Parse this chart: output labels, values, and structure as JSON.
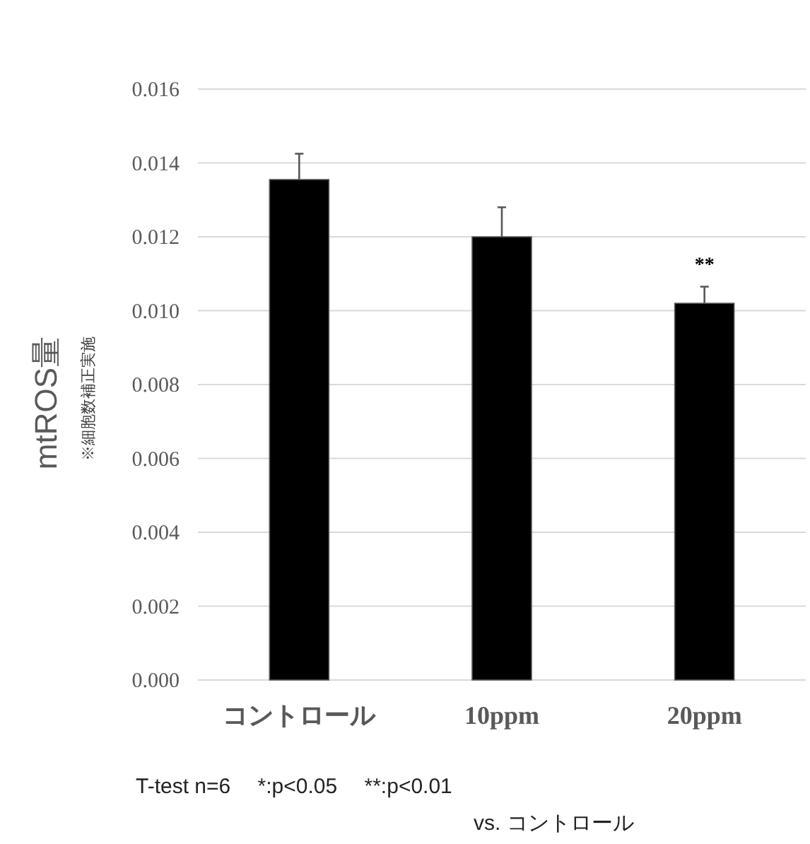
{
  "chart_data": {
    "type": "bar",
    "ylabel": "mtROS量",
    "categories": [
      "コントロール",
      "10ppm",
      "20ppm"
    ],
    "values": [
      0.01355,
      0.012,
      0.0102
    ],
    "errors": [
      0.0007,
      0.0008,
      0.00045
    ],
    "color": "#000000",
    "ylim": [
      0,
      0.016
    ],
    "yticks": [
      {
        "value": 0,
        "label": "0.000"
      },
      {
        "value": 0.002,
        "label": "0.002"
      },
      {
        "value": 0.004,
        "label": "0.004"
      },
      {
        "value": 0.006,
        "label": "0.006"
      },
      {
        "value": 0.008,
        "label": "0.008"
      },
      {
        "value": 0.01,
        "label": "0.010"
      },
      {
        "value": 0.012,
        "label": "0.012"
      },
      {
        "value": 0.014,
        "label": "0.014"
      },
      {
        "value": 0.016,
        "label": "0.016"
      }
    ],
    "grid": "y",
    "annotations": [
      "**",
      "※細胞数補正実施",
      "T-test n=6　 *:p<0.05　 **:p<0.01",
      "vs.  コントロール"
    ]
  }
}
